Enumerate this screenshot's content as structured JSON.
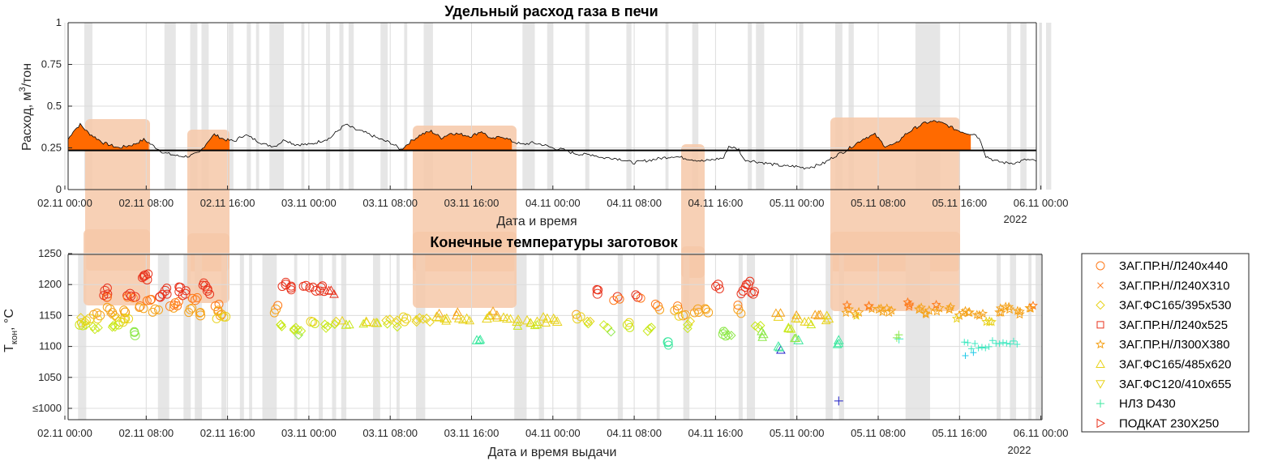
{
  "chart_data": [
    {
      "type": "area",
      "title": "Удельный расход газа в печи",
      "xlabel": "Дата и время",
      "ylabel": "Расход, м",
      "ylabel_sup": "3",
      "ylabel_tail": "/тон",
      "year_label": "2022",
      "x_ticks": [
        "02.11 00:00",
        "02.11 08:00",
        "02.11 16:00",
        "03.11 00:00",
        "03.11 08:00",
        "03.11 16:00",
        "04.11 00:00",
        "04.11 08:00",
        "04.11 16:00",
        "05.11 00:00",
        "05.11 08:00",
        "05.11 16:00",
        "06.11 00:00"
      ],
      "xlim_hours": [
        0,
        96
      ],
      "y_ticks": [
        "0",
        "0.25",
        "0.5",
        "0.75",
        "1"
      ],
      "ylim": [
        0,
        1
      ],
      "threshold": 0.235,
      "grid": true,
      "gas_profile": [
        [
          0,
          0.3
        ],
        [
          0.5,
          0.35
        ],
        [
          1.2,
          0.39
        ],
        [
          2.0,
          0.34
        ],
        [
          3.5,
          0.28
        ],
        [
          5,
          0.25
        ],
        [
          6.5,
          0.27
        ],
        [
          7.5,
          0.3
        ],
        [
          8.5,
          0.26
        ],
        [
          9.5,
          0.22
        ],
        [
          11,
          0.2
        ],
        [
          12,
          0.2
        ],
        [
          13,
          0.22
        ],
        [
          14,
          0.3
        ],
        [
          14.5,
          0.33
        ],
        [
          15.5,
          0.3
        ],
        [
          16.5,
          0.29
        ],
        [
          17.5,
          0.33
        ],
        [
          18.5,
          0.3
        ],
        [
          19.5,
          0.27
        ],
        [
          20.5,
          0.26
        ],
        [
          21.5,
          0.3
        ],
        [
          22.5,
          0.27
        ],
        [
          24,
          0.27
        ],
        [
          25,
          0.29
        ],
        [
          26,
          0.31
        ],
        [
          26.5,
          0.34
        ],
        [
          27.5,
          0.39
        ],
        [
          28.5,
          0.36
        ],
        [
          29.5,
          0.34
        ],
        [
          31,
          0.3
        ],
        [
          32,
          0.28
        ],
        [
          33,
          0.24
        ],
        [
          34,
          0.29
        ],
        [
          35,
          0.33
        ],
        [
          36,
          0.35
        ],
        [
          37,
          0.31
        ],
        [
          38,
          0.34
        ],
        [
          40,
          0.32
        ],
        [
          41,
          0.35
        ],
        [
          42,
          0.3
        ],
        [
          43,
          0.32
        ],
        [
          44,
          0.29
        ],
        [
          45,
          0.27
        ],
        [
          46,
          0.28
        ],
        [
          47,
          0.27
        ],
        [
          48,
          0.25
        ],
        [
          49,
          0.24
        ],
        [
          50,
          0.22
        ],
        [
          51,
          0.21
        ],
        [
          52,
          0.21
        ],
        [
          53,
          0.19
        ],
        [
          54,
          0.19
        ],
        [
          55,
          0.18
        ],
        [
          56,
          0.16
        ],
        [
          57,
          0.17
        ],
        [
          58,
          0.18
        ],
        [
          59,
          0.19
        ],
        [
          60,
          0.2
        ],
        [
          61,
          0.19
        ],
        [
          62,
          0.18
        ],
        [
          63,
          0.17
        ],
        [
          64,
          0.18
        ],
        [
          65,
          0.19
        ],
        [
          65.5,
          0.26
        ],
        [
          66.5,
          0.24
        ],
        [
          67,
          0.18
        ],
        [
          68,
          0.17
        ],
        [
          69,
          0.16
        ],
        [
          70,
          0.15
        ],
        [
          71,
          0.14
        ],
        [
          72,
          0.14
        ],
        [
          73,
          0.13
        ],
        [
          74,
          0.14
        ],
        [
          75,
          0.16
        ],
        [
          76,
          0.2
        ],
        [
          77,
          0.23
        ],
        [
          78,
          0.27
        ],
        [
          79,
          0.31
        ],
        [
          80,
          0.33
        ],
        [
          81,
          0.26
        ],
        [
          82,
          0.27
        ],
        [
          83,
          0.33
        ],
        [
          84,
          0.37
        ],
        [
          85,
          0.4
        ],
        [
          86,
          0.41
        ],
        [
          87,
          0.39
        ],
        [
          88,
          0.36
        ],
        [
          89,
          0.34
        ],
        [
          90,
          0.33
        ],
        [
          90.5,
          0.29
        ],
        [
          91,
          0.2
        ],
        [
          92,
          0.17
        ],
        [
          93,
          0.16
        ],
        [
          94,
          0.16
        ],
        [
          95,
          0.18
        ],
        [
          96,
          0.17
        ]
      ],
      "filled_intervals_hours": [
        [
          0,
          8
        ],
        [
          12,
          16
        ],
        [
          33,
          44
        ],
        [
          74,
          89.5
        ]
      ]
    },
    {
      "type": "scatter",
      "title": "Конечные температуры заготовок",
      "xlabel": "Дата и время выдачи",
      "ylabel": "T",
      "ylabel_sub": "кон",
      "ylabel_tail": ", °C",
      "year_label": "2022",
      "x_ticks": [
        "02.11 00:00",
        "02.11 08:00",
        "02.11 16:00",
        "03.11 00:00",
        "03.11 08:00",
        "03.11 16:00",
        "04.11 00:00",
        "04.11 08:00",
        "04.11 16:00",
        "05.11 00:00",
        "05.11 08:00",
        "05.11 16:00",
        "06.11 00:00"
      ],
      "xlim_hours": [
        -1,
        96
      ],
      "y_ticks": [
        "≤1000",
        "1050",
        "1100",
        "1150",
        "1200",
        "1250"
      ],
      "ylim": [
        1000,
        1250
      ],
      "grid": true,
      "series": [
        {
          "name": "ЗАГ.ПР.Н/Л240х440",
          "marker": "circle"
        },
        {
          "name": "ЗАГ.ПР.Н/Л240Х310",
          "marker": "x"
        },
        {
          "name": "ЗАГ.ФС165/395х530",
          "marker": "diamond"
        },
        {
          "name": "ЗАГ.ПР.Н/Л240х525",
          "marker": "square"
        },
        {
          "name": "ЗАГ.ПР.Н/Л300Х380",
          "marker": "star"
        },
        {
          "name": "ЗАГ.ФС165/485х620",
          "marker": "triangle-up"
        },
        {
          "name": "ЗАГ.ФС120/410х655",
          "marker": "triangle-down"
        },
        {
          "name": "НЛЗ D430",
          "marker": "plus"
        },
        {
          "name": "ПОДКАТ 230Х250",
          "marker": "triangle-right"
        }
      ],
      "points": [
        [
          0.5,
          1135,
          "circle"
        ],
        [
          1,
          1140,
          "diamond"
        ],
        [
          1.5,
          1145,
          "circle"
        ],
        [
          2,
          1128,
          "diamond"
        ],
        [
          2.5,
          1150,
          "circle"
        ],
        [
          3,
          1190,
          "circle"
        ],
        [
          3.2,
          1180,
          "circle"
        ],
        [
          3.5,
          1160,
          "circle"
        ],
        [
          4,
          1150,
          "diamond"
        ],
        [
          4.5,
          1140,
          "circle"
        ],
        [
          5,
          1155,
          "circle"
        ],
        [
          5.5,
          1185,
          "circle"
        ],
        [
          6,
          1180,
          "circle"
        ],
        [
          6.5,
          1165,
          "circle"
        ],
        [
          7,
          1215,
          "circle"
        ],
        [
          7.2,
          1208,
          "circle"
        ],
        [
          7.5,
          1175,
          "circle"
        ],
        [
          8,
          1160,
          "circle"
        ],
        [
          8.5,
          1180,
          "circle"
        ],
        [
          9,
          1190,
          "circle"
        ],
        [
          9.5,
          1165,
          "circle"
        ],
        [
          10,
          1170,
          "circle"
        ],
        [
          10.5,
          1195,
          "circle"
        ],
        [
          11,
          1185,
          "circle"
        ],
        [
          11.5,
          1160,
          "circle"
        ],
        [
          12,
          1175,
          "circle"
        ],
        [
          12.5,
          1150,
          "circle"
        ],
        [
          13,
          1198,
          "circle"
        ],
        [
          13.2,
          1190,
          "circle"
        ],
        [
          6,
          1118,
          "circle"
        ],
        [
          4,
          1132,
          "diamond"
        ],
        [
          5,
          1145,
          "circle"
        ],
        [
          14,
          1165,
          "circle"
        ],
        [
          14.5,
          1150,
          "circle"
        ],
        [
          15,
          1148,
          "circle"
        ],
        [
          20,
          1160,
          "circle"
        ],
        [
          20.5,
          1135,
          "diamond"
        ],
        [
          21,
          1200,
          "circle"
        ],
        [
          21.5,
          1195,
          "circle"
        ],
        [
          22,
          1130,
          "diamond"
        ],
        [
          22.5,
          1125,
          "diamond"
        ],
        [
          23,
          1198,
          "circle"
        ],
        [
          23.5,
          1140,
          "circle"
        ],
        [
          24,
          1190,
          "circle"
        ],
        [
          24.5,
          1195,
          "circle"
        ],
        [
          25,
          1130,
          "diamond"
        ],
        [
          25.5,
          1190,
          "triangle-up"
        ],
        [
          26,
          1140,
          "diamond"
        ],
        [
          27,
          1135,
          "triangle-up"
        ],
        [
          29,
          1140,
          "triangle-up"
        ],
        [
          30,
          1138,
          "triangle-up"
        ],
        [
          31,
          1142,
          "diamond"
        ],
        [
          32,
          1138,
          "diamond"
        ],
        [
          33,
          1145,
          "circle"
        ],
        [
          34,
          1140,
          "diamond"
        ],
        [
          35,
          1145,
          "diamond"
        ],
        [
          36,
          1148,
          "triangle-up"
        ],
        [
          37,
          1145,
          "triangle-up"
        ],
        [
          38,
          1150,
          "triangle-up"
        ],
        [
          39,
          1145,
          "triangle-up"
        ],
        [
          40,
          1110,
          "triangle-up"
        ],
        [
          41,
          1145,
          "triangle-up"
        ],
        [
          42,
          1150,
          "triangle-up"
        ],
        [
          43,
          1145,
          "triangle-up"
        ],
        [
          44,
          1140,
          "triangle-up"
        ],
        [
          45,
          1142,
          "triangle-up"
        ],
        [
          46,
          1140,
          "triangle-up"
        ],
        [
          47,
          1145,
          "triangle-up"
        ],
        [
          48,
          1140,
          "triangle-up"
        ],
        [
          50,
          1145,
          "circle"
        ],
        [
          51,
          1140,
          "diamond"
        ],
        [
          52,
          1185,
          "circle"
        ],
        [
          53,
          1130,
          "diamond"
        ],
        [
          54,
          1180,
          "circle"
        ],
        [
          55,
          1135,
          "circle"
        ],
        [
          56,
          1180,
          "circle"
        ],
        [
          57,
          1125,
          "diamond"
        ],
        [
          58,
          1165,
          "circle"
        ],
        [
          59,
          1107,
          "circle"
        ],
        [
          60,
          1160,
          "circle"
        ],
        [
          60.5,
          1150,
          "circle"
        ],
        [
          61,
          1135,
          "diamond"
        ],
        [
          62,
          1160,
          "circle"
        ],
        [
          63,
          1155,
          "circle"
        ],
        [
          64,
          1200,
          "circle"
        ],
        [
          64.5,
          1120,
          "circle"
        ],
        [
          65,
          1118,
          "diamond"
        ],
        [
          66,
          1160,
          "circle"
        ],
        [
          66.5,
          1190,
          "circle"
        ],
        [
          67,
          1200,
          "circle"
        ],
        [
          67.5,
          1185,
          "circle"
        ],
        [
          68,
          1130,
          "diamond"
        ],
        [
          68.5,
          1120,
          "triangle-up"
        ],
        [
          70,
          1148,
          "triangle-up"
        ],
        [
          71,
          1130,
          "triangle-up"
        ],
        [
          72,
          1145,
          "triangle-up"
        ],
        [
          73,
          1140,
          "triangle-up"
        ],
        [
          74,
          1150,
          "triangle-up"
        ],
        [
          75,
          1145,
          "triangle-up"
        ],
        [
          76,
          1110,
          "triangle-up"
        ],
        [
          77,
          1160,
          "star"
        ],
        [
          78,
          1155,
          "star"
        ],
        [
          79,
          1165,
          "star"
        ],
        [
          80,
          1160,
          "star"
        ],
        [
          81,
          1155,
          "star"
        ],
        [
          82,
          1112,
          "plus"
        ],
        [
          83,
          1165,
          "star"
        ],
        [
          84,
          1160,
          "star"
        ],
        [
          85,
          1158,
          "star"
        ],
        [
          86,
          1162,
          "star"
        ],
        [
          87,
          1160,
          "star"
        ],
        [
          88,
          1150,
          "star"
        ],
        [
          89,
          1155,
          "star"
        ],
        [
          90,
          1150,
          "star"
        ],
        [
          91,
          1140,
          "star"
        ],
        [
          92,
          1155,
          "star"
        ],
        [
          93,
          1160,
          "star"
        ],
        [
          94,
          1152,
          "star"
        ],
        [
          95,
          1162,
          "star"
        ],
        [
          70,
          1100,
          "triangle-up"
        ],
        [
          72,
          1110,
          "triangle-up"
        ],
        [
          76,
          1012,
          "plus"
        ]
      ]
    }
  ],
  "legend_position": "right",
  "colors": {
    "fill_orange": "#ff6a00",
    "highlight": "#f6c8a8",
    "gray_band": "#e6e6e6",
    "threshold_line": "#000000"
  }
}
